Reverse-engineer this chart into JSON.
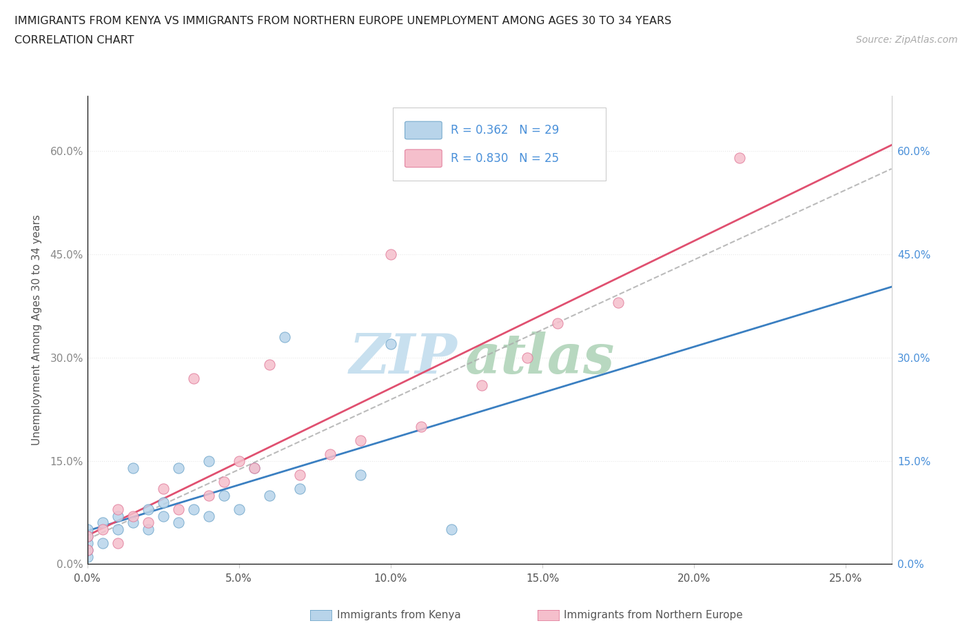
{
  "title_line1": "IMMIGRANTS FROM KENYA VS IMMIGRANTS FROM NORTHERN EUROPE UNEMPLOYMENT AMONG AGES 30 TO 34 YEARS",
  "title_line2": "CORRELATION CHART",
  "source_text": "Source: ZipAtlas.com",
  "ylabel": "Unemployment Among Ages 30 to 34 years",
  "x_tick_labels": [
    "0.0%",
    "5.0%",
    "10.0%",
    "15.0%",
    "20.0%",
    "25.0%"
  ],
  "x_tick_values": [
    0.0,
    0.05,
    0.1,
    0.15,
    0.2,
    0.25
  ],
  "y_tick_labels_left": [
    "0.0%",
    "15.0%",
    "30.0%",
    "45.0%",
    "60.0%"
  ],
  "y_tick_labels_right": [
    "0.0%",
    "15.0%",
    "30.0%",
    "45.0%",
    "60.0%"
  ],
  "y_tick_values": [
    0.0,
    0.15,
    0.3,
    0.45,
    0.6
  ],
  "kenya_fill_color": "#b8d4ea",
  "kenya_edge_color": "#6ba3c8",
  "ne_fill_color": "#f5bfcc",
  "ne_edge_color": "#e07898",
  "kenya_line_color": "#3a7fc1",
  "ne_line_color": "#e05070",
  "legend_text_color": "#4a90d9",
  "y_right_color": "#4a90d9",
  "grid_color": "#e8e8e8",
  "grid_style": "dotted",
  "kenya_R": 0.362,
  "kenya_N": 29,
  "ne_R": 0.83,
  "ne_N": 25,
  "kenya_x": [
    0.0,
    0.0,
    0.0,
    0.0,
    0.0,
    0.005,
    0.005,
    0.01,
    0.01,
    0.015,
    0.015,
    0.02,
    0.02,
    0.025,
    0.025,
    0.03,
    0.03,
    0.035,
    0.04,
    0.04,
    0.045,
    0.05,
    0.055,
    0.06,
    0.065,
    0.07,
    0.09,
    0.1,
    0.12
  ],
  "kenya_y": [
    0.01,
    0.02,
    0.03,
    0.04,
    0.05,
    0.03,
    0.06,
    0.05,
    0.07,
    0.06,
    0.14,
    0.05,
    0.08,
    0.07,
    0.09,
    0.06,
    0.14,
    0.08,
    0.07,
    0.15,
    0.1,
    0.08,
    0.14,
    0.1,
    0.33,
    0.11,
    0.13,
    0.32,
    0.05
  ],
  "ne_x": [
    0.0,
    0.0,
    0.005,
    0.01,
    0.01,
    0.015,
    0.02,
    0.025,
    0.03,
    0.035,
    0.04,
    0.045,
    0.05,
    0.055,
    0.06,
    0.07,
    0.08,
    0.09,
    0.1,
    0.11,
    0.13,
    0.145,
    0.155,
    0.175,
    0.215
  ],
  "ne_y": [
    0.02,
    0.04,
    0.05,
    0.03,
    0.08,
    0.07,
    0.06,
    0.11,
    0.08,
    0.27,
    0.1,
    0.12,
    0.15,
    0.14,
    0.29,
    0.13,
    0.16,
    0.18,
    0.45,
    0.2,
    0.26,
    0.3,
    0.35,
    0.38,
    0.59
  ],
  "xlim": [
    0.0,
    0.265
  ],
  "ylim": [
    0.0,
    0.68
  ],
  "scatter_size": 120,
  "watermark_zip_color": "#c8e0ef",
  "watermark_atlas_color": "#b8d8c0"
}
